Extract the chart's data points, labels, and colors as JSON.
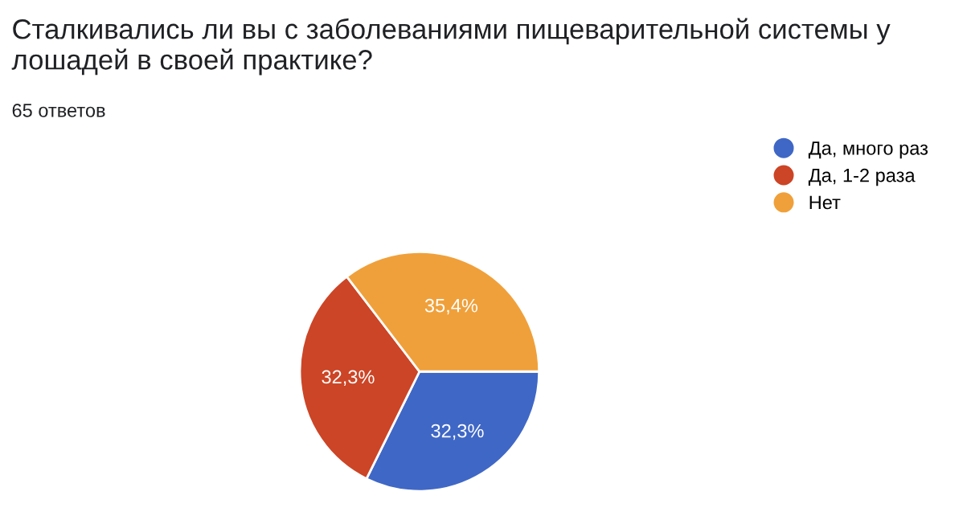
{
  "chart_data": {
    "type": "pie",
    "title": "Сталкивались ли вы с заболеваниями пищеварительной системы у лошадей в своей практике?",
    "subtitle": "65 ответов",
    "categories": [
      "Да, много раз",
      "Да, 1-2 раза",
      "Нет"
    ],
    "values": [
      32.3,
      32.3,
      35.4
    ],
    "value_labels": [
      "32,3%",
      "32,3%",
      "35,4%"
    ],
    "colors": [
      "#3f67c6",
      "#cc4526",
      "#f0a03a"
    ],
    "legend": "right"
  }
}
